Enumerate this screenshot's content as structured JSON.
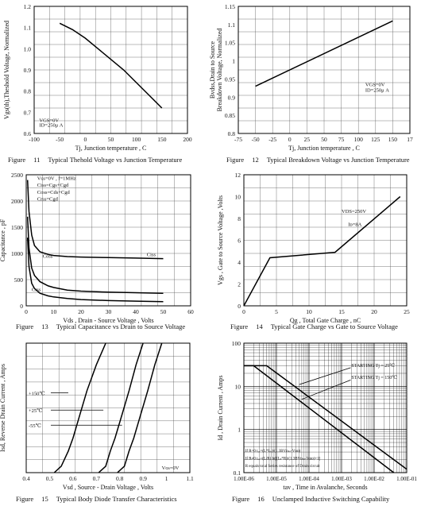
{
  "figures": [
    {
      "figure_label": "Figure",
      "number": "11",
      "caption": "Typical Thehold Voltage vs Junction Temperature"
    },
    {
      "figure_label": "Figure",
      "number": "12",
      "caption": "Typical Breakdown Voltage vs Junction Temperature"
    },
    {
      "figure_label": "Figure",
      "number": "13",
      "caption": "Typical Capacitance vs Drain to Source Voltage"
    },
    {
      "figure_label": "Figure",
      "number": "14",
      "caption": "Typical Gate Charge vs Gate to Source Voltage"
    },
    {
      "figure_label": "Figure",
      "number": "15",
      "caption": "Typical Body Diode Transfer Characteristics"
    },
    {
      "figure_label": "Figure",
      "number": "16",
      "caption": "Unclamped Inductive Switching Capability"
    }
  ],
  "chart_data": [
    {
      "type": "line",
      "xlabel": "Tj, Junction temperature , C",
      "ylabel": "Vgs(th),Theshold Voltage, Normalized",
      "xlim": [
        -100,
        200
      ],
      "ylim": [
        0.6,
        1.2
      ],
      "xticks": [
        "-100",
        "-50",
        "0",
        "50",
        "100",
        "150",
        "200"
      ],
      "yticks": [
        "0.6",
        "0.7",
        "0.8",
        "0.9",
        "1.0",
        "1.1",
        "1.2"
      ],
      "ytick_values": [
        0.6,
        0.7,
        0.8,
        0.9,
        1.0,
        1.1,
        1.2
      ],
      "grid": true,
      "annotations": [
        "VGS=0V",
        "ID=250μ A"
      ],
      "series": [
        {
          "x": [
            -50,
            -25,
            0,
            25,
            50,
            75,
            100,
            125,
            150
          ],
          "y": [
            1.12,
            1.09,
            1.05,
            1.0,
            0.95,
            0.9,
            0.84,
            0.78,
            0.72
          ]
        }
      ]
    },
    {
      "type": "line",
      "xlabel": "Tj, Junction temperature , C",
      "ylabel": "Bvdss,Drain to Source Breakdown Voltage, Normalized",
      "xlim": [
        -75,
        175
      ],
      "ylim": [
        0.8,
        1.15
      ],
      "xticks": [
        "-75",
        "-50",
        "-25",
        "0",
        "25",
        "50",
        "75",
        "100",
        "125",
        "150",
        "17"
      ],
      "yticks": [
        "0.8",
        "0.85",
        "0.9",
        "0.95",
        "1",
        "1.05",
        "1.1",
        "1.15"
      ],
      "ytick_values": [
        0.8,
        0.85,
        0.9,
        0.95,
        1.0,
        1.05,
        1.1,
        1.15
      ],
      "grid": true,
      "annotations": [
        "VGS=0V",
        "ID=250μ A"
      ],
      "series": [
        {
          "x": [
            -50,
            150
          ],
          "y": [
            0.93,
            1.11
          ]
        }
      ]
    },
    {
      "type": "line",
      "xlabel": "Vds , Drain - Source Voltage , Volts",
      "ylabel": "Capacitance , pF",
      "xlim": [
        0,
        60
      ],
      "ylim": [
        0,
        2500
      ],
      "xticks": [
        "0",
        "10",
        "20",
        "30",
        "40",
        "50",
        "60"
      ],
      "yticks": [
        "0",
        "500",
        "1000",
        "1500",
        "2000",
        "2500"
      ],
      "ytick_values": [
        0,
        500,
        1000,
        1500,
        2000,
        2500
      ],
      "grid": true,
      "annotations": [
        "Vɢs=0V , f=1MHz",
        "Ciss=Cgs+Cgd",
        "Coss=Cds+Cgd",
        "Crss=Cgd"
      ],
      "series": [
        {
          "name": "Ciss",
          "x": [
            0.5,
            1,
            2,
            3,
            5,
            8,
            10,
            15,
            20,
            30,
            40,
            50
          ],
          "y": [
            2400,
            1800,
            1350,
            1150,
            1030,
            980,
            960,
            940,
            930,
            920,
            910,
            900
          ]
        },
        {
          "name": "Coss",
          "x": [
            0.5,
            1,
            2,
            3,
            5,
            8,
            10,
            15,
            20,
            30,
            40,
            50
          ],
          "y": [
            1700,
            1100,
            720,
            580,
            460,
            380,
            350,
            300,
            280,
            260,
            250,
            240
          ]
        },
        {
          "name": "Crss",
          "x": [
            0.5,
            1,
            2,
            3,
            5,
            8,
            10,
            15,
            20,
            30,
            40,
            50
          ],
          "y": [
            1300,
            750,
            430,
            330,
            240,
            190,
            170,
            140,
            120,
            100,
            90,
            80
          ]
        }
      ]
    },
    {
      "type": "line",
      "xlabel": "Qg , Total Gate Charge , nC",
      "ylabel": "Vgs , Gate to Source Voltage ,Volts",
      "xlim": [
        0,
        25
      ],
      "ylim": [
        0,
        12
      ],
      "xticks": [
        "0",
        "5",
        "10",
        "15",
        "20",
        "25"
      ],
      "yticks": [
        "0",
        "2",
        "4",
        "6",
        "8",
        "10",
        "12"
      ],
      "ytick_values": [
        0,
        2,
        4,
        6,
        8,
        10,
        12
      ],
      "grid": true,
      "annotations": [
        "VDS=250V",
        "Iᴅ=8A"
      ],
      "series": [
        {
          "x": [
            0,
            4,
            14,
            24
          ],
          "y": [
            0,
            4.4,
            4.9,
            10
          ]
        }
      ]
    },
    {
      "type": "line",
      "xlabel": "Vsd , Source - Drain Voltage , Volts",
      "ylabel": "Isd, Reverse Drain Current , Amps",
      "xlim": [
        0.4,
        1.1
      ],
      "ylim": [
        0,
        6
      ],
      "xticks": [
        "0.4",
        "0.5",
        "0.6",
        "0.7",
        "0.8",
        "0.9",
        "1",
        "1.1"
      ],
      "yticks": [],
      "ytick_values": [],
      "grid": true,
      "annotations": [
        "Vɢs=0V"
      ],
      "series": [
        {
          "name": "+150℃",
          "x": [
            0.52,
            0.55,
            0.58,
            0.6,
            0.63,
            0.66,
            0.7,
            0.74
          ],
          "y": [
            0,
            0.3,
            1.0,
            1.6,
            2.7,
            3.8,
            5.0,
            6.0
          ]
        },
        {
          "name": "+25℃",
          "x": [
            0.71,
            0.74,
            0.76,
            0.78,
            0.81,
            0.84,
            0.87,
            0.9
          ],
          "y": [
            0,
            0.3,
            1.0,
            1.6,
            2.7,
            3.8,
            5.0,
            6.0
          ]
        },
        {
          "name": "-55℃",
          "x": [
            0.79,
            0.82,
            0.84,
            0.86,
            0.89,
            0.92,
            0.95,
            0.98
          ],
          "y": [
            0,
            0.3,
            1.0,
            1.6,
            2.7,
            3.8,
            5.0,
            6.0
          ]
        }
      ]
    },
    {
      "type": "line",
      "xlabel": "tav , Time in Avalanche, Seconds",
      "ylabel": "Id , Drain Current , Amps",
      "xscale": "log",
      "yscale": "log",
      "xlim": [
        1e-06,
        0.1
      ],
      "ylim": [
        0.1,
        100
      ],
      "xticks": [
        "1.00E-06",
        "1.00E-05",
        "1.00E-04",
        "1.00E-03",
        "1.00E-02",
        "1.00E-01"
      ],
      "yticks": [
        "0.1",
        "1",
        "10",
        "100"
      ],
      "ytick_values": [
        0.1,
        1,
        10,
        100
      ],
      "grid": true,
      "annotations": [
        "STARTING Tj = 25℃",
        "STARTING Tj = 150℃",
        "If R=0  tₐᵥ=(L*Iₐₛ)/(1.3BVᴅₛₛ-Vᴅᴅ)",
        "If R≠0  tₐᵥ=(L/R) ln[(Iₐₛ*R)/(1.3BVᴅₛₛ-Vᴅᴅ)+1]",
        "R equals total Series resistance of Drain circuit"
      ],
      "series": [
        {
          "name": "STARTING Tj = 25℃",
          "x": [
            1e-06,
            5e-06,
            0.1
          ],
          "y": [
            30,
            30,
            0.12
          ]
        },
        {
          "name": "STARTING Tj = 150℃",
          "x": [
            1e-06,
            2e-06,
            0.04
          ],
          "y": [
            30,
            30,
            0.1
          ]
        }
      ]
    }
  ]
}
